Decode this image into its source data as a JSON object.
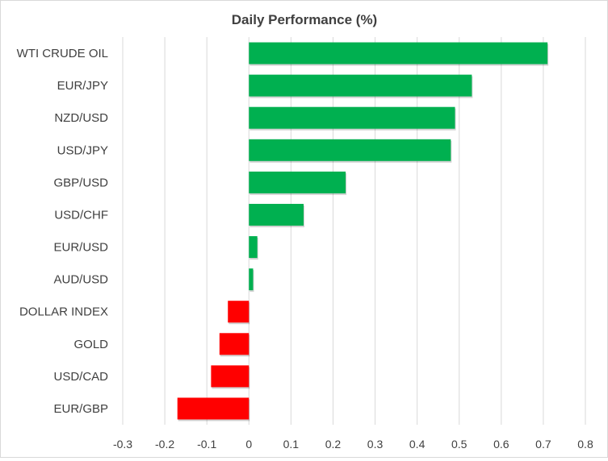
{
  "chart_data": {
    "type": "bar",
    "orientation": "horizontal",
    "title": "Daily Performance (%)",
    "xlabel": "",
    "ylabel": "",
    "categories": [
      "WTI CRUDE OIL",
      "EUR/JPY",
      "NZD/USD",
      "USD/JPY",
      "GBP/USD",
      "USD/CHF",
      "EUR/USD",
      "AUD/USD",
      "DOLLAR INDEX",
      "GOLD",
      "USD/CAD",
      "EUR/GBP"
    ],
    "values": [
      0.71,
      0.53,
      0.49,
      0.48,
      0.23,
      0.13,
      0.02,
      0.01,
      -0.05,
      -0.07,
      -0.09,
      -0.17
    ],
    "xlim": [
      -0.3,
      0.8
    ],
    "xticks": [
      "-0.3",
      "-0.2",
      "-0.1",
      "0",
      "0.1",
      "0.2",
      "0.3",
      "0.4",
      "0.5",
      "0.6",
      "0.7",
      "0.8"
    ],
    "grid": true,
    "legend": "none",
    "colors": {
      "positive": "#00b050",
      "negative": "#ff0000",
      "grid": "#d9d9d9"
    }
  }
}
